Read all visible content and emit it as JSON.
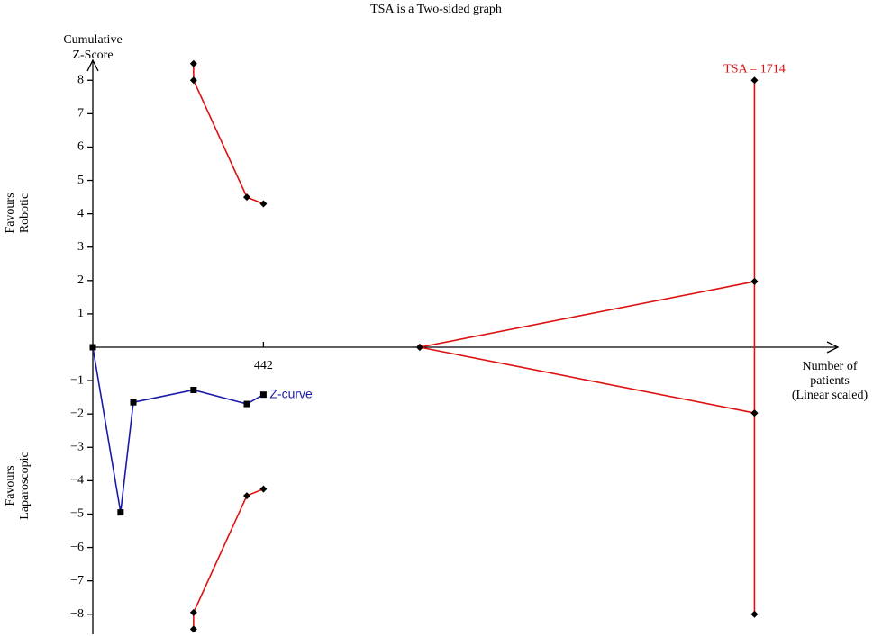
{
  "chart_data": {
    "type": "line",
    "title": "TSA is a Two-sided graph",
    "y_title": [
      "Cumulative",
      "Z-Score"
    ],
    "x_title": [
      "Number of",
      "patients",
      "(Linear scaled)"
    ],
    "upper_label": [
      "Favours",
      "Robotic"
    ],
    "lower_label": [
      "Favours",
      "Laparoscopic"
    ],
    "tsa_label": "TSA = 1714",
    "xlim": [
      0,
      1930
    ],
    "ylim": [
      -8.6,
      8.6
    ],
    "xticks": [
      442
    ],
    "yticks": [
      {
        "value": -8,
        "label": "−8"
      },
      {
        "value": -7,
        "label": "−7"
      },
      {
        "value": -6,
        "label": "−6"
      },
      {
        "value": -5,
        "label": "−5"
      },
      {
        "value": -4,
        "label": "−4"
      },
      {
        "value": -3,
        "label": "−3"
      },
      {
        "value": -2,
        "label": "−2"
      },
      {
        "value": -1,
        "label": "−1"
      },
      1,
      2,
      3,
      4,
      5,
      6,
      7,
      8
    ],
    "series": [
      {
        "name": "Z-curve",
        "color": "#1a1aaa",
        "marker": "square",
        "x": [
          0,
          72,
          105,
          261,
          399,
          442
        ],
        "values": [
          0,
          -4.95,
          -1.65,
          -1.28,
          -1.7,
          -1.42
        ]
      },
      {
        "color": "#dd1111",
        "marker": "diamond",
        "x": [
          261,
          261,
          399,
          442
        ],
        "values": [
          8.5,
          8.0,
          4.5,
          4.3
        ]
      },
      {
        "color": "#dd1111",
        "marker": "diamond",
        "x": [
          261,
          261,
          399,
          442
        ],
        "values": [
          -8.45,
          -7.95,
          -4.45,
          -4.25
        ]
      },
      {
        "color": "#dd1111",
        "marker": "diamond",
        "x": [
          847,
          1714
        ],
        "values": [
          0,
          1.97
        ]
      },
      {
        "color": "#dd1111",
        "marker": "diamond",
        "x": [
          847,
          1714
        ],
        "values": [
          0,
          -1.97
        ]
      },
      {
        "color": "#dd1111",
        "marker": "diamond",
        "x": [
          1714,
          1714,
          1714,
          1714
        ],
        "values": [
          8,
          1.97,
          -1.97,
          -8
        ]
      }
    ]
  }
}
